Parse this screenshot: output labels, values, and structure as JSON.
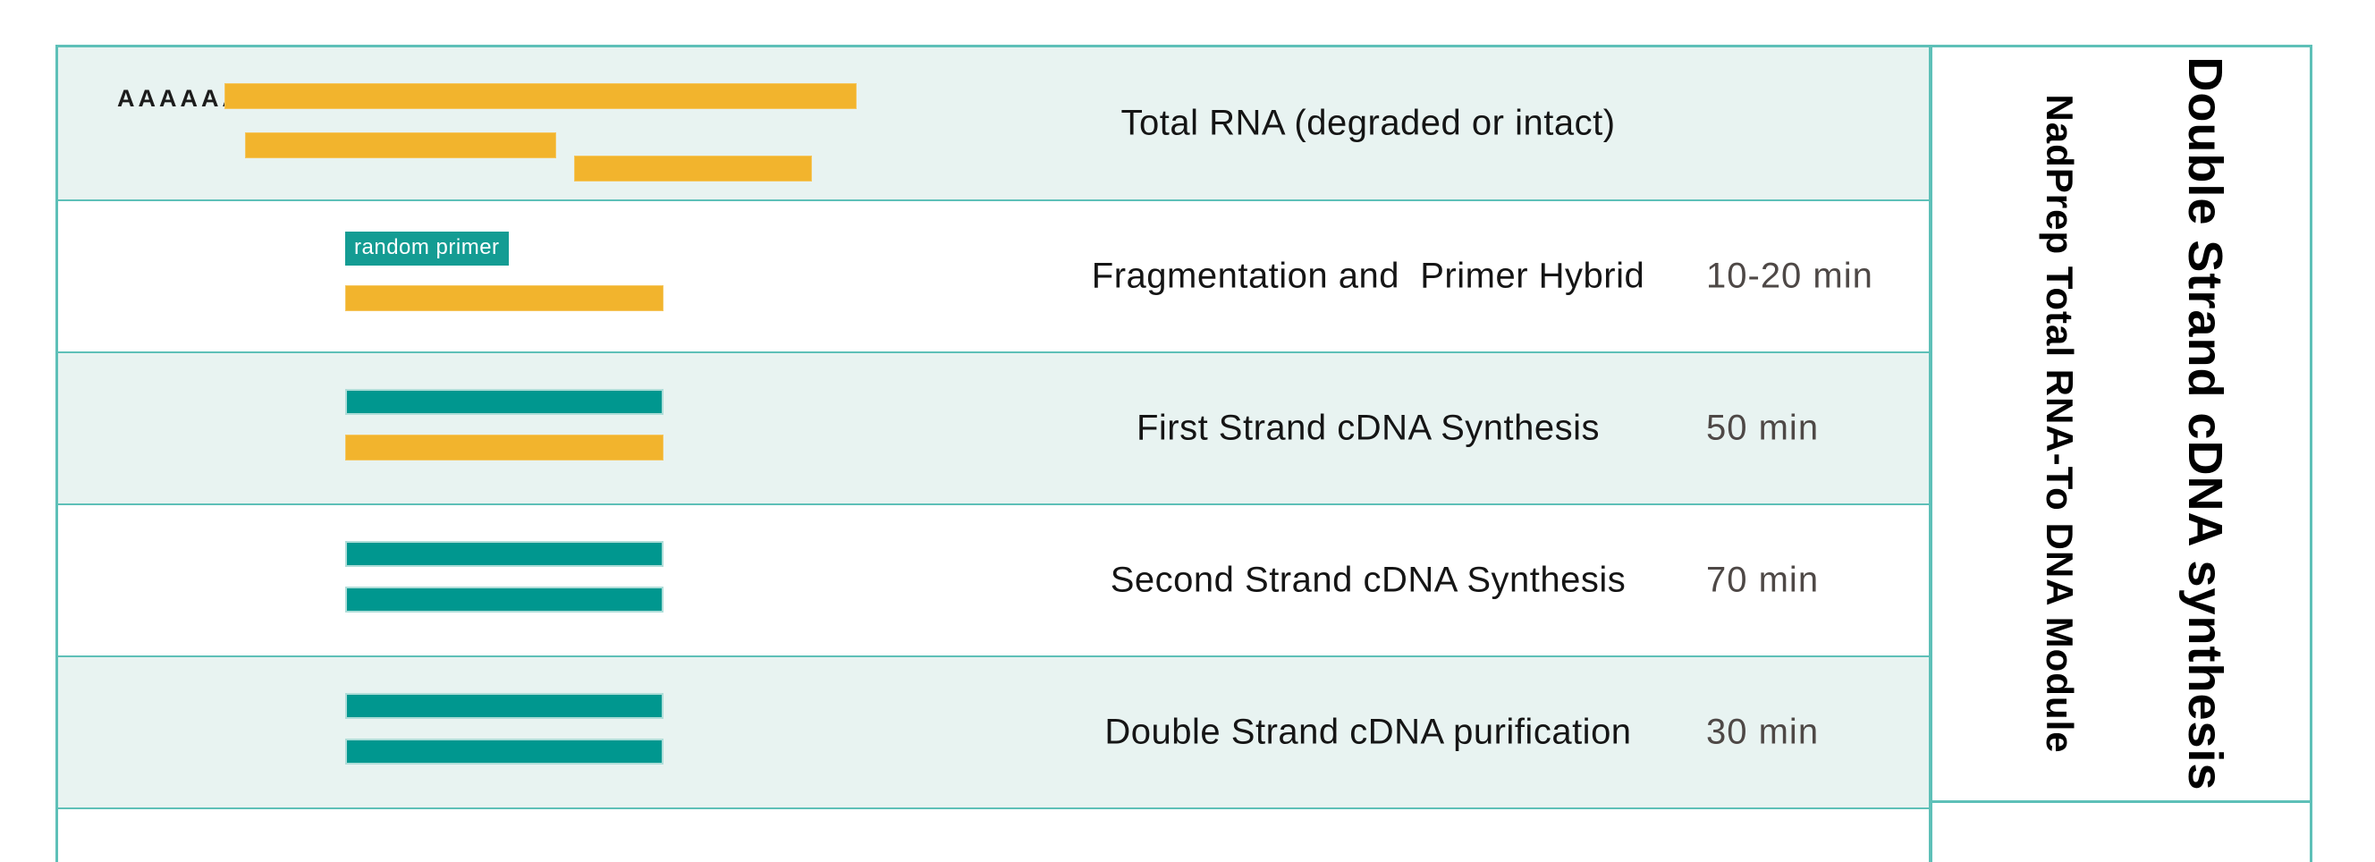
{
  "colors": {
    "border_teal": "#5ec0b8",
    "row_alt_bg": "#e8f3f1",
    "row_bg": "#ffffff",
    "bar_yellow": "#f2b42d",
    "bar_teal": "#00978f",
    "badge_bg": "#149c93",
    "badge_text": "#ffffff",
    "label_text": "#151515",
    "time_text": "#4e4846"
  },
  "rows": [
    {
      "label": "Total RNA (degraded or intact)",
      "time": "",
      "poly_a": "AAAAAAA",
      "graphics": [
        "yellow-long-rna-bar",
        "yellow-rna-fragment",
        "yellow-rna-fragment"
      ]
    },
    {
      "label": "Fragmentation and  Primer Hybrid",
      "time": "10-20 min",
      "badge": "random primer",
      "graphics": [
        "yellow-rna-fragment"
      ]
    },
    {
      "label": "First Strand cDNA Synthesis",
      "time": "50 min",
      "graphics": [
        "teal-cdna-strand",
        "yellow-rna-fragment"
      ]
    },
    {
      "label": "Second Strand cDNA Synthesis",
      "time": "70 min",
      "graphics": [
        "teal-cdna-strand",
        "teal-cdna-strand"
      ]
    },
    {
      "label": "Double Strand cDNA purification",
      "time": "30 min",
      "graphics": [
        "teal-cdna-strand",
        "teal-cdna-strand"
      ]
    }
  ],
  "side_panel": {
    "module_label": "NadPrep Total RNA-To DNA Module",
    "section_label": "Double Strand cDNA synthesis"
  }
}
